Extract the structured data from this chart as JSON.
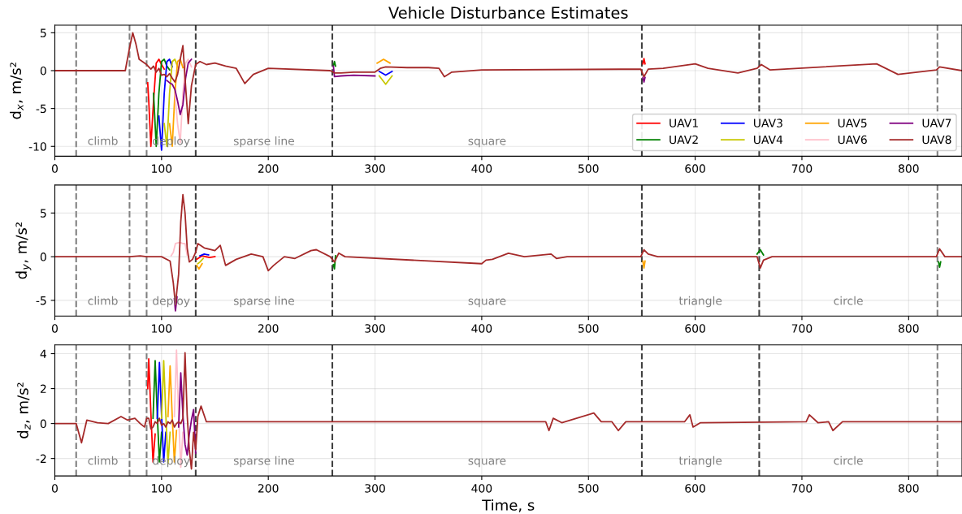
{
  "chart_data": [
    {
      "type": "line",
      "title": "Vehicle Disturbance Estimates",
      "ylabel": "d$_{x}$, m/s²",
      "xlim": [
        0,
        850
      ],
      "xticks": [
        0,
        100,
        200,
        300,
        400,
        500,
        600,
        700,
        800
      ],
      "ylim": [
        -11.3,
        6
      ],
      "yticks": [
        -10,
        -5,
        0,
        5
      ],
      "grid": true,
      "legend": "bottom right",
      "line_style": "solid",
      "marker": "none",
      "series": [
        {
          "name": "UAV1",
          "color": "#ff0000",
          "x": [
            87,
            88,
            90,
            92.5,
            95,
            97.5,
            100,
            102.5,
            105,
            551,
            552,
            553
          ],
          "values": [
            -1.6,
            -4,
            -10,
            -4,
            1,
            1.5,
            0.8,
            0.2,
            null,
            0.9,
            1.6,
            0.9
          ]
        },
        {
          "name": "UAV2",
          "color": "#008000",
          "x": [
            92.5,
            95,
            97.5,
            100,
            102.5,
            105,
            107.5,
            110,
            261,
            262,
            263
          ],
          "values": [
            -3,
            -10,
            -3,
            1.2,
            1.5,
            0.6,
            0.1,
            null,
            0.6,
            1.2,
            0.6
          ]
        },
        {
          "name": "UAV3",
          "color": "#0000ff",
          "x": [
            97.5,
            100,
            102.5,
            105,
            107.5,
            110,
            112.5,
            304,
            310,
            316
          ],
          "values": [
            -6,
            -10.5,
            -3,
            1.2,
            1.5,
            0.5,
            null,
            -0.1,
            -0.6,
            -0.1
          ]
        },
        {
          "name": "UAV4",
          "color": "#c8c800",
          "x": [
            102.5,
            105,
            107.5,
            110,
            112.5,
            115,
            117.5,
            304,
            310,
            316
          ],
          "values": [
            -7,
            -10,
            -3,
            1.2,
            1.5,
            0.5,
            null,
            -0.7,
            -1.8,
            -0.7
          ]
        },
        {
          "name": "UAV5",
          "color": "#ffa500",
          "x": [
            107.5,
            110,
            112.5,
            115,
            117.5,
            120,
            122.5,
            302,
            308,
            314
          ],
          "values": [
            -7,
            -10,
            -3,
            1.2,
            1.5,
            0.4,
            null,
            1.0,
            1.5,
            1.0
          ]
        },
        {
          "name": "UAV6",
          "color": "#ffc0cb",
          "x": [
            112.5,
            115,
            117.5,
            120,
            122.5,
            125,
            128
          ],
          "values": [
            -3,
            -7,
            -9.5,
            -3,
            1.0,
            1.5,
            0.5
          ]
        },
        {
          "name": "UAV7",
          "color": "#800080",
          "x": [
            105,
            107.5,
            110,
            112.5,
            115,
            117.5,
            120,
            122.5,
            125,
            128,
            130,
            261,
            262,
            268,
            280,
            300,
            302,
            551,
            552,
            553
          ],
          "values": [
            -1.3,
            -1.6,
            -1.8,
            -2.5,
            -4,
            -5.8,
            -4.5,
            -1,
            1,
            1.5,
            null,
            0.6,
            -0.8,
            -0.7,
            -0.6,
            -0.7,
            null,
            -0.9,
            -1.5,
            -0.9
          ]
        },
        {
          "name": "UAV8",
          "color": "#a52a2a",
          "x": [
            0,
            66,
            70,
            73,
            76,
            79,
            82,
            86,
            88,
            90,
            92.5,
            95,
            97.5,
            100,
            102.5,
            105,
            107.5,
            110,
            112.5,
            115,
            117.5,
            120,
            122.5,
            125,
            128,
            132,
            136,
            142,
            150,
            160,
            170,
            178,
            186,
            200,
            258,
            262,
            268,
            280,
            300,
            305,
            310,
            330,
            350,
            360,
            365,
            372,
            400,
            549,
            552,
            556,
            570,
            600,
            612,
            640,
            658,
            662,
            670,
            770,
            790,
            826,
            829,
            850
          ],
          "values": [
            0,
            0,
            3,
            5,
            3.5,
            1.5,
            1.2,
            0.8,
            0.5,
            0.2,
            0.6,
            -0.2,
            0.3,
            -0.6,
            -0.5,
            -0.8,
            -0.4,
            -1,
            -1.5,
            -0.5,
            1.5,
            3.3,
            -2,
            -7,
            -2,
            0.8,
            1.2,
            0.8,
            1.0,
            0.6,
            0.3,
            -1.7,
            -0.5,
            0.3,
            0.0,
            -0.3,
            -0.3,
            -0.2,
            -0.2,
            0.3,
            0.5,
            0.4,
            0.4,
            0.3,
            -0.8,
            -0.2,
            0.1,
            0.2,
            -0.8,
            0.2,
            0.3,
            0.9,
            0.3,
            -0.3,
            0.3,
            0.8,
            0.1,
            0.9,
            -0.5,
            0.1,
            0.5,
            0.0
          ]
        }
      ],
      "ref_lines": [
        {
          "axis": "x",
          "value": 20,
          "color": "#808080",
          "line_style": "dashed"
        },
        {
          "axis": "x",
          "value": 70,
          "color": "#808080",
          "line_style": "dashed"
        },
        {
          "axis": "x",
          "value": 86,
          "color": "#808080",
          "line_style": "dashed"
        },
        {
          "axis": "x",
          "value": 132,
          "color": "#404040",
          "line_style": "dashed"
        },
        {
          "axis": "x",
          "value": 260,
          "color": "#404040",
          "line_style": "dashed"
        },
        {
          "axis": "x",
          "value": 550,
          "color": "#404040",
          "line_style": "dashed"
        },
        {
          "axis": "x",
          "value": 660,
          "color": "#404040",
          "line_style": "dashed"
        },
        {
          "axis": "x",
          "value": 827,
          "color": "#808080",
          "line_style": "dashed"
        }
      ],
      "annotations": [
        "climb",
        "deploy",
        "sparse line",
        "square"
      ]
    },
    {
      "type": "line",
      "ylabel": "d$_{y}$, m/s²",
      "xlim": [
        0,
        850
      ],
      "xticks": [
        0,
        100,
        200,
        300,
        400,
        500,
        600,
        700,
        800
      ],
      "ylim": [
        -6.8,
        8.2
      ],
      "yticks": [
        -5,
        0,
        5
      ],
      "grid": true,
      "line_style": "solid",
      "marker": "none",
      "series": [
        {
          "color": "#ff0000",
          "x": [
            133,
            138,
            145,
            150
          ],
          "values": [
            -0.3,
            0.1,
            -0.1,
            0.0
          ]
        },
        {
          "color": "#008000",
          "x": [
            261,
            262,
            263,
            264,
            658,
            661,
            664,
            665,
            828,
            829,
            830
          ],
          "values": [
            -0.9,
            -1.4,
            0.1,
            null,
            0.3,
            0.8,
            0.2,
            null,
            -0.6,
            -1.2,
            -0.6
          ]
        },
        {
          "color": "#0000ff",
          "x": [
            136,
            140,
            144
          ],
          "values": [
            0.1,
            0.3,
            0.2
          ]
        },
        {
          "color": "#c8c800",
          "x": [
            134,
            136,
            139
          ],
          "values": [
            -0.8,
            -0.6,
            -0.2
          ]
        },
        {
          "color": "#ffa500",
          "x": [
            133,
            135,
            138,
            139,
            551,
            552,
            553
          ],
          "values": [
            -1.0,
            -1.4,
            -0.8,
            null,
            -0.5,
            -1.3,
            -0.5
          ]
        },
        {
          "color": "#ffc0cb",
          "x": [
            109,
            111,
            113,
            116,
            118,
            120,
            122,
            124
          ],
          "values": [
            0.1,
            0.5,
            1.5,
            1.6,
            1.6,
            1.5,
            1.5,
            0.2
          ]
        },
        {
          "color": "#800080",
          "x": [
            112,
            113,
            114.5
          ],
          "values": [
            -4.8,
            -6.2,
            -4.6
          ]
        },
        {
          "color": "#a52a2a",
          "x": [
            0,
            70,
            80,
            86,
            100,
            108,
            111,
            113,
            116,
            118,
            120,
            122,
            124,
            126,
            129,
            132,
            134,
            140,
            150,
            155,
            160,
            170,
            184,
            195,
            200,
            205,
            215,
            225,
            240,
            245,
            258,
            262,
            266,
            272,
            400,
            404,
            410,
            425,
            440,
            465,
            470,
            480,
            549,
            552,
            556,
            565,
            658,
            661,
            664,
            672,
            826,
            829,
            834,
            850
          ],
          "values": [
            0,
            0,
            0.1,
            0,
            0,
            -0.5,
            -3,
            -5.5,
            -2,
            4,
            7.1,
            5,
            1,
            -0.6,
            -0.3,
            0.5,
            1.5,
            1.0,
            0.7,
            1.3,
            -1.0,
            -0.3,
            0.3,
            0,
            -1.6,
            -1,
            0,
            -0.2,
            0.7,
            0.8,
            0,
            -0.6,
            0.4,
            0,
            -0.8,
            -0.4,
            -0.3,
            0.4,
            0,
            0.3,
            -0.2,
            0,
            0,
            0.8,
            0.3,
            0,
            0,
            -1.3,
            -0.4,
            0,
            0,
            0.9,
            0,
            0
          ]
        }
      ],
      "ref_lines": [
        {
          "axis": "x",
          "value": 20,
          "color": "#808080",
          "line_style": "dashed"
        },
        {
          "axis": "x",
          "value": 70,
          "color": "#808080",
          "line_style": "dashed"
        },
        {
          "axis": "x",
          "value": 86,
          "color": "#808080",
          "line_style": "dashed"
        },
        {
          "axis": "x",
          "value": 132,
          "color": "#404040",
          "line_style": "dashed"
        },
        {
          "axis": "x",
          "value": 260,
          "color": "#404040",
          "line_style": "dashed"
        },
        {
          "axis": "x",
          "value": 550,
          "color": "#404040",
          "line_style": "dashed"
        },
        {
          "axis": "x",
          "value": 660,
          "color": "#404040",
          "line_style": "dashed"
        },
        {
          "axis": "x",
          "value": 827,
          "color": "#808080",
          "line_style": "dashed"
        }
      ],
      "annotations": [
        "climb",
        "deploy",
        "sparse line",
        "square",
        "triangle",
        "circle"
      ]
    },
    {
      "type": "line",
      "ylabel": "d$_{z}$, m/s²",
      "xlabel": "Time, s",
      "xlim": [
        0,
        850
      ],
      "xticks": [
        0,
        100,
        200,
        300,
        400,
        500,
        600,
        700,
        800
      ],
      "ylim": [
        -3,
        4.5
      ],
      "yticks": [
        -2,
        0,
        2,
        4
      ],
      "grid": true,
      "line_style": "solid",
      "marker": "none",
      "series": [
        {
          "color": "#ff0000",
          "x": [
            87,
            88,
            90,
            92,
            94
          ],
          "values": [
            2.0,
            3.7,
            0.6,
            -2.2,
            -0.6
          ]
        },
        {
          "color": "#008000",
          "x": [
            92,
            94,
            96,
            98,
            100
          ],
          "values": [
            0.3,
            3.6,
            0.5,
            -2.2,
            -0.5
          ]
        },
        {
          "color": "#0000ff",
          "x": [
            96,
            98,
            100,
            102,
            104
          ],
          "values": [
            0.3,
            3.5,
            0.5,
            -2.2,
            -0.5
          ]
        },
        {
          "color": "#c8c800",
          "x": [
            100,
            102,
            104,
            106,
            108
          ],
          "values": [
            0.3,
            3.6,
            0.5,
            -2.3,
            -0.5
          ]
        },
        {
          "color": "#ffa500",
          "x": [
            106,
            108,
            110,
            112,
            114
          ],
          "values": [
            0.4,
            3.3,
            0.4,
            -2.2,
            -0.4
          ]
        },
        {
          "color": "#ffc0cb",
          "x": [
            112,
            114,
            116,
            118,
            120
          ],
          "values": [
            0.4,
            4.2,
            0.5,
            -2.5,
            -0.5
          ]
        },
        {
          "color": "#800080",
          "x": [
            116,
            118,
            120,
            122,
            124,
            126,
            128,
            130,
            132
          ],
          "values": [
            -0.2,
            2.9,
            0.5,
            -1.2,
            -1.8,
            -0.6,
            0.2,
            0.8,
            -1.7
          ]
        },
        {
          "color": "#a52a2a",
          "x": [
            0,
            20,
            25,
            30,
            40,
            50,
            62,
            68,
            75,
            80,
            84,
            86,
            88,
            90,
            92,
            94,
            96,
            98,
            100,
            102,
            104,
            106,
            108,
            110,
            112,
            114,
            116,
            118,
            120,
            122,
            124,
            126,
            128,
            130,
            132,
            134,
            137,
            142,
            150,
            460,
            463,
            467,
            475,
            505,
            512,
            522,
            528,
            535,
            590,
            595,
            598,
            605,
            704,
            707,
            715,
            725,
            729,
            738,
            850
          ],
          "values": [
            0,
            0,
            -1.1,
            0.2,
            0.05,
            0,
            0.4,
            0.2,
            0.3,
            0,
            -0.2,
            0.3,
            0.3,
            -0.3,
            -0.2,
            0.1,
            0,
            0.3,
            -0.1,
            0,
            -0.2,
            0.1,
            0,
            0.2,
            -0.2,
            0,
            0.1,
            0,
            0.3,
            4.05,
            0.5,
            -1.5,
            -2.6,
            -0.5,
            -1.5,
            0.4,
            1.0,
            0.1,
            0.1,
            0.1,
            -0.4,
            0.3,
            0.05,
            0.6,
            0.1,
            0.1,
            -0.4,
            0.1,
            0.1,
            0.5,
            -0.2,
            0.05,
            0.1,
            0.5,
            0.05,
            0.1,
            -0.4,
            0.1,
            0.1
          ]
        }
      ],
      "ref_lines": [
        {
          "axis": "x",
          "value": 20,
          "color": "#808080",
          "line_style": "dashed"
        },
        {
          "axis": "x",
          "value": 70,
          "color": "#808080",
          "line_style": "dashed"
        },
        {
          "axis": "x",
          "value": 86,
          "color": "#808080",
          "line_style": "dashed"
        },
        {
          "axis": "x",
          "value": 132,
          "color": "#404040",
          "line_style": "dashed"
        },
        {
          "axis": "x",
          "value": 260,
          "color": "#404040",
          "line_style": "dashed"
        },
        {
          "axis": "x",
          "value": 550,
          "color": "#404040",
          "line_style": "dashed"
        },
        {
          "axis": "x",
          "value": 660,
          "color": "#404040",
          "line_style": "dashed"
        },
        {
          "axis": "x",
          "value": 827,
          "color": "#808080",
          "line_style": "dashed"
        }
      ],
      "annotations": [
        "climb",
        "deploy",
        "sparse line",
        "square",
        "triangle",
        "circle"
      ]
    }
  ]
}
